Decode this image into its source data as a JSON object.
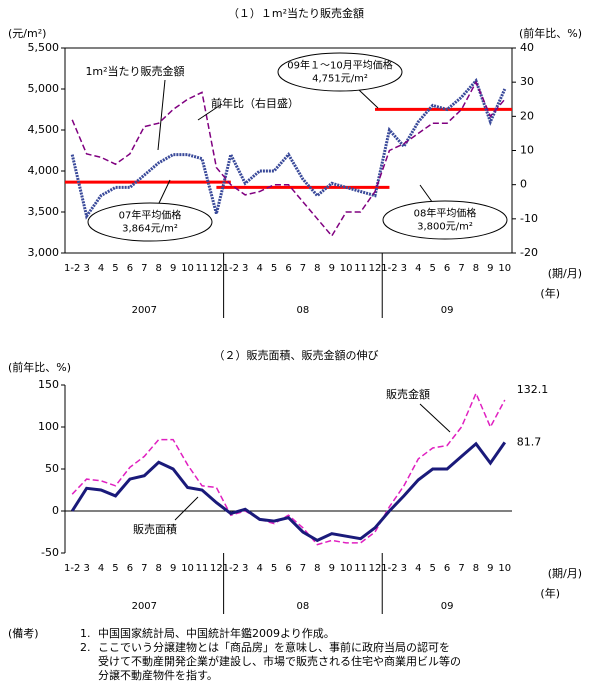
{
  "chart_data": [
    {
      "type": "line",
      "title": "（１）１m²当たり販売金額",
      "y_label": "(元/m²)",
      "y2_label": "(前年比、%)",
      "x_label": "(期/月)",
      "x_sublabel": "(年)",
      "categories": [
        "1-2",
        "3",
        "4",
        "5",
        "6",
        "7",
        "8",
        "9",
        "10",
        "11",
        "12",
        "1-2",
        "3",
        "4",
        "5",
        "6",
        "7",
        "8",
        "9",
        "10",
        "11",
        "12",
        "1-2",
        "3",
        "4",
        "5",
        "6",
        "7",
        "8",
        "9",
        "10"
      ],
      "year_labels": [
        "2007",
        "08",
        "09"
      ],
      "ylim": [
        3000,
        5500
      ],
      "yticks": [
        {
          "value": 3000,
          "label": "3,000"
        },
        {
          "value": 3500,
          "label": "3,500"
        },
        {
          "value": 4000,
          "label": "4,000"
        },
        {
          "value": 4500,
          "label": "4,500"
        },
        {
          "value": 5000,
          "label": "5,000"
        },
        {
          "value": 5500,
          "label": "5,500"
        }
      ],
      "y2lim": [
        -20,
        40
      ],
      "y2ticks": [
        -20,
        -10,
        0,
        10,
        20,
        30,
        40
      ],
      "series": [
        {
          "name": "1m²当たり販売金額",
          "color": "#3a4a9a",
          "values": [
            4200,
            3450,
            3700,
            3800,
            3800,
            3950,
            4100,
            4200,
            4200,
            4150,
            3480,
            4200,
            3850,
            4000,
            4000,
            4200,
            3900,
            3700,
            3850,
            3800,
            3750,
            3700,
            4500,
            4300,
            4600,
            4800,
            4750,
            4900,
            5100,
            4600,
            5000
          ]
        },
        {
          "name": "前年比（右目盛）",
          "color": "#800080",
          "axis": "y2",
          "values": [
            19,
            9,
            8,
            6,
            9,
            17,
            18,
            22,
            25,
            27,
            5,
            0,
            -3,
            -2,
            0,
            0,
            -5,
            -10,
            -15,
            -8,
            -8,
            -2,
            10,
            12,
            15,
            18,
            18,
            22,
            30,
            20,
            25
          ]
        }
      ],
      "reference_lines": [
        {
          "value": 3864,
          "color": "#ff0000",
          "label": [
            "07年平均価格",
            "3,864元/m²"
          ]
        },
        {
          "value": 3800,
          "color": "#ff0000",
          "label": [
            "08年平均価格",
            "3,800元/m²"
          ]
        },
        {
          "value": 4751,
          "color": "#ff0000",
          "label": [
            "09年１～10月平均価格",
            "4,751元/m²"
          ]
        }
      ]
    },
    {
      "type": "line",
      "title": "（２）販売面積、販売金額の伸び",
      "y_label": "(前年比、%)",
      "x_label": "(期/月)",
      "x_sublabel": "(年)",
      "categories": [
        "1-2",
        "3",
        "4",
        "5",
        "6",
        "7",
        "8",
        "9",
        "10",
        "11",
        "12",
        "1-2",
        "3",
        "4",
        "5",
        "6",
        "7",
        "8",
        "9",
        "10",
        "11",
        "12",
        "1-2",
        "3",
        "4",
        "5",
        "6",
        "7",
        "8",
        "9",
        "10"
      ],
      "year_labels": [
        "2007",
        "08",
        "09"
      ],
      "ylim": [
        -50,
        150
      ],
      "yticks": [
        -50,
        0,
        50,
        100,
        150
      ],
      "series": [
        {
          "name": "販売金額",
          "color": "#e020c0",
          "dashed": true,
          "end_label": "132.1",
          "values": [
            20,
            38,
            36,
            30,
            52,
            65,
            85,
            85,
            55,
            30,
            28,
            -5,
            0,
            -10,
            -15,
            -5,
            -20,
            -40,
            -35,
            -38,
            -38,
            -25,
            5,
            30,
            62,
            75,
            78,
            100,
            140,
            100,
            132.1
          ]
        },
        {
          "name": "販売面積",
          "color": "#1a1a7a",
          "end_label": "81.7",
          "values": [
            0,
            27,
            25,
            18,
            38,
            42,
            58,
            50,
            28,
            25,
            10,
            -3,
            2,
            -10,
            -12,
            -8,
            -25,
            -35,
            -27,
            -30,
            -33,
            -20,
            0,
            18,
            37,
            50,
            50,
            65,
            80,
            57,
            81.7
          ]
        }
      ]
    }
  ],
  "notes": {
    "heading": "(備考)",
    "items": [
      {
        "number": "1.",
        "lines": [
          "中国国家統計局、中国統計年鑑2009より作成。"
        ]
      },
      {
        "number": "2.",
        "lines": [
          "ここでいう分譲建物とは「商品房」を意味し、事前に政府当局の認可を",
          "受けて不動産開発企業が建設し、市場で販売される住宅や商業用ビル等の",
          "分譲不動産物件を指す。"
        ]
      }
    ]
  }
}
